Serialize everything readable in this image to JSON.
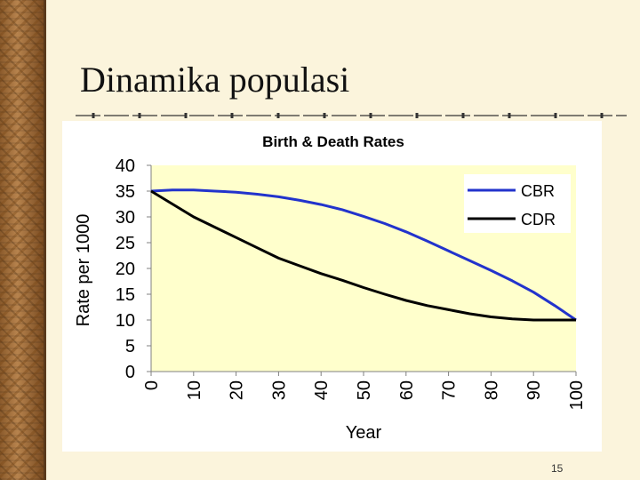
{
  "slide": {
    "title": "Dinamika populasi",
    "page_number": "15"
  },
  "colors": {
    "plot_background": "#ffffcc",
    "cbr": "#2233cc",
    "cdr": "#000000"
  },
  "chart_data": {
    "type": "line",
    "title": "Birth & Death Rates",
    "xlabel": "Year",
    "ylabel": "Rate per 1000",
    "x": [
      0,
      5,
      10,
      15,
      20,
      25,
      30,
      35,
      40,
      45,
      50,
      55,
      60,
      65,
      70,
      75,
      80,
      85,
      90,
      95,
      100
    ],
    "xticks": [
      "0",
      "10",
      "20",
      "30",
      "40",
      "50",
      "60",
      "70",
      "80",
      "90",
      "100"
    ],
    "yticks": [
      "0",
      "5",
      "10",
      "15",
      "20",
      "25",
      "30",
      "35",
      "40"
    ],
    "xlim": [
      0,
      100
    ],
    "ylim": [
      0,
      40
    ],
    "grid": false,
    "legend": "top-right",
    "series": [
      {
        "name": "CBR",
        "values": [
          35,
          35.2,
          35.2,
          35,
          34.8,
          34.4,
          33.9,
          33.2,
          32.4,
          31.4,
          30.1,
          28.7,
          27.1,
          25.3,
          23.4,
          21.5,
          19.6,
          17.6,
          15.4,
          12.8,
          10
        ]
      },
      {
        "name": "CDR",
        "values": [
          35,
          32.5,
          30,
          28,
          26,
          24,
          22,
          20.5,
          19,
          17.7,
          16.3,
          15,
          13.8,
          12.8,
          12,
          11.2,
          10.6,
          10.2,
          10,
          10,
          10
        ]
      }
    ]
  }
}
